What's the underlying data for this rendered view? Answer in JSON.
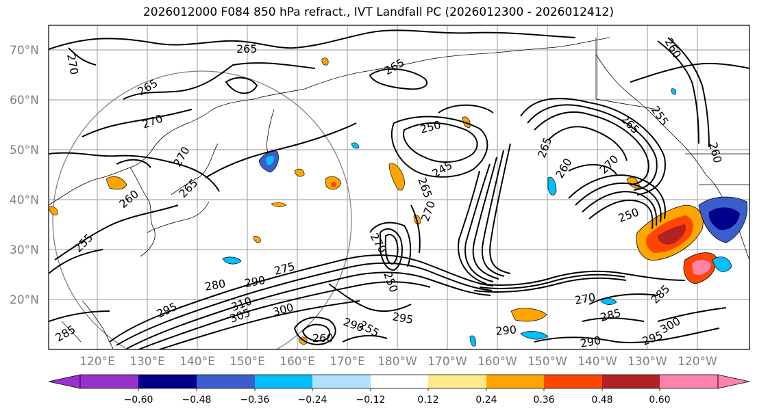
{
  "title": "2026012000 F084 850 hPa refract., IVT Landfall PC (2026012300 - 2026012412)",
  "lat_labels": [
    "70°N",
    "60°N",
    "50°N",
    "40°N",
    "30°N",
    "20°N"
  ],
  "lon_labels": [
    "120°E",
    "130°E",
    "140°E",
    "150°E",
    "160°E",
    "170°E",
    "180°W",
    "170°W",
    "160°W",
    "150°W",
    "140°W",
    "130°W",
    "120°W"
  ],
  "contour_labels": [
    "265",
    "270",
    "265",
    "270",
    "270",
    "265",
    "260",
    "265",
    "255",
    "260",
    "250",
    "245",
    "265",
    "260",
    "270",
    "250",
    "255",
    "265",
    "260",
    "265",
    "270",
    "270",
    "275",
    "280",
    "290",
    "295",
    "310",
    "305",
    "300",
    "295",
    "290",
    "285",
    "285",
    "270",
    "285",
    "290",
    "290",
    "295",
    "300",
    "260",
    "250",
    "255"
  ],
  "colorbar": {
    "ticks": [
      "−0.60",
      "−0.48",
      "−0.36",
      "−0.24",
      "−0.12",
      "0.12",
      "0.24",
      "0.36",
      "0.48",
      "0.60"
    ],
    "colors": [
      "#9932cc",
      "#00008b",
      "#3a5fcd",
      "#00bfff",
      "#b0e2ff",
      "#ffffff",
      "#ffe98a",
      "#ffa500",
      "#ff4500",
      "#b22222",
      "#ff82ab"
    ]
  },
  "colors": {
    "axis_text": "#808080",
    "contour": "#000000",
    "grid": "#808080"
  }
}
